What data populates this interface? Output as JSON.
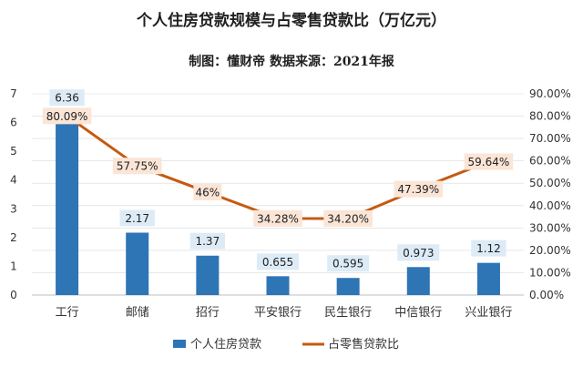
{
  "chart_data": {
    "type": "bar+line",
    "title": "个人住房贷款规模与占零售贷款比（万亿元）",
    "subtitle": "制图：懂财帝   数据来源：2021年报",
    "categories": [
      "工行",
      "邮储",
      "招行",
      "平安银行",
      "民生银行",
      "中信银行",
      "兴业银行"
    ],
    "series": [
      {
        "name": "个人住房贷款",
        "type": "bar",
        "axis": "left",
        "values": [
          6.36,
          2.17,
          1.37,
          0.655,
          0.595,
          0.973,
          1.12
        ],
        "labels": [
          "6.36",
          "2.17",
          "1.37",
          "0.655",
          "0.595",
          "0.973",
          "1.12"
        ]
      },
      {
        "name": "占零售贷款比",
        "type": "line",
        "axis": "right",
        "values": [
          80.09,
          57.75,
          46,
          34.28,
          34.2,
          47.39,
          59.64
        ],
        "labels": [
          "80.09%",
          "57.75%",
          "46%",
          "34.28%",
          "34.20%",
          "47.39%",
          "59.64%"
        ]
      }
    ],
    "y_left": {
      "min": 0,
      "max": 7,
      "ticks": [
        "0",
        "1",
        "2",
        "3",
        "4",
        "5",
        "6",
        "7"
      ]
    },
    "y_right": {
      "min": 0,
      "max": 90,
      "ticks": [
        "0.00%",
        "10.00%",
        "20.00%",
        "30.00%",
        "40.00%",
        "50.00%",
        "60.00%",
        "70.00%",
        "80.00%",
        "90.00%"
      ]
    },
    "legend_position": "bottom",
    "colors": {
      "bar": "#2E75B6",
      "line": "#C55A11",
      "bar_label_bg": "#DDEBF7",
      "line_label_bg": "#FBE5D6",
      "gridline": "#d9d9d9"
    }
  }
}
